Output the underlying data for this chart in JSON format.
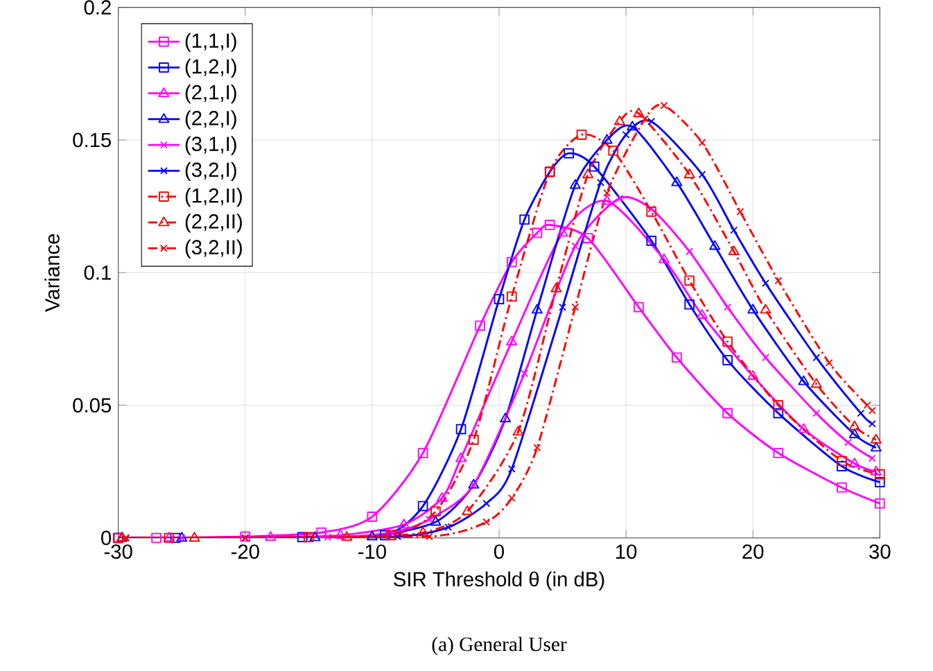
{
  "chart_data": {
    "type": "line",
    "xlabel": "SIR Threshold θ (in dB)",
    "ylabel": "Variance",
    "annotations": [
      "(a) General User"
    ],
    "xlim": [
      -30,
      30
    ],
    "xticks": [
      -30,
      -20,
      -10,
      0,
      10,
      20,
      30
    ],
    "ylim": [
      0,
      0.2
    ],
    "yticks": [
      0,
      0.05,
      0.1,
      0.15,
      0.2
    ],
    "grid": true,
    "legend": "top left",
    "series": [
      {
        "name": "(1,1,I)",
        "color": "#ff00ff",
        "marker": "square",
        "line_style": "solid",
        "x": [
          -30,
          -27,
          -20,
          -14,
          -10,
          -6,
          -1.5,
          1,
          3,
          4,
          7,
          11,
          14,
          18,
          22,
          27,
          30
        ],
        "values": [
          0,
          0,
          0.0005,
          0.002,
          0.008,
          0.032,
          0.08,
          0.104,
          0.115,
          0.118,
          0.113,
          0.087,
          0.068,
          0.047,
          0.032,
          0.019,
          0.013
        ]
      },
      {
        "name": "(1,2,I)",
        "color": "#0000ff",
        "marker": "square",
        "line_style": "solid",
        "x": [
          -30,
          -25.5,
          -15.5,
          -9,
          -6,
          -3,
          0,
          2,
          4,
          5.5,
          7.5,
          12,
          15,
          18,
          22,
          27,
          30
        ],
        "values": [
          0,
          0,
          0.0003,
          0.001,
          0.012,
          0.041,
          0.09,
          0.12,
          0.138,
          0.145,
          0.14,
          0.112,
          0.088,
          0.067,
          0.047,
          0.027,
          0.021
        ]
      },
      {
        "name": "(2,1,I)",
        "color": "#ff00ff",
        "marker": "triangle",
        "line_style": "solid",
        "x": [
          -29.7,
          -26,
          -18,
          -12.5,
          -7.5,
          -4.5,
          -3,
          1,
          5,
          8.5,
          13,
          16,
          20,
          24,
          28,
          29.7
        ],
        "values": [
          0,
          0,
          0.0003,
          0.001,
          0.005,
          0.015,
          0.03,
          0.074,
          0.115,
          0.127,
          0.105,
          0.084,
          0.061,
          0.041,
          0.028,
          0.025
        ]
      },
      {
        "name": "(2,2,I)",
        "color": "#0000ff",
        "marker": "triangle",
        "line_style": "solid",
        "x": [
          -29.7,
          -25,
          -14.5,
          -10,
          -5,
          -2,
          0.5,
          3,
          6,
          8.5,
          10.5,
          14,
          17,
          20,
          24,
          28,
          29.7
        ],
        "values": [
          0,
          0,
          0.0002,
          0.0005,
          0.006,
          0.02,
          0.045,
          0.086,
          0.133,
          0.15,
          0.155,
          0.134,
          0.11,
          0.086,
          0.059,
          0.039,
          0.034
        ]
      },
      {
        "name": "(3,1,I)",
        "color": "#ff00ff",
        "marker": "cross",
        "line_style": "solid",
        "x": [
          -29.4,
          -25,
          -13.5,
          -8.5,
          -5.5,
          -2,
          2,
          6,
          9.5,
          12,
          15,
          18,
          21,
          25,
          27.5,
          29.4
        ],
        "values": [
          0,
          0,
          0.0003,
          0.002,
          0.007,
          0.02,
          0.062,
          0.11,
          0.128,
          0.124,
          0.108,
          0.087,
          0.068,
          0.047,
          0.036,
          0.03
        ]
      },
      {
        "name": "(3,2,I)",
        "color": "#0000ff",
        "marker": "cross",
        "line_style": "solid",
        "x": [
          -29.4,
          -20,
          -8,
          -4,
          -1,
          1,
          5,
          8,
          10,
          12,
          16,
          18.5,
          21,
          25,
          28.5,
          29.4
        ],
        "values": [
          0,
          0,
          0.0005,
          0.004,
          0.013,
          0.026,
          0.087,
          0.134,
          0.152,
          0.157,
          0.137,
          0.116,
          0.096,
          0.068,
          0.047,
          0.043
        ]
      },
      {
        "name": "(1,2,II)",
        "color": "#ff0000",
        "marker": "square",
        "line_style": "dashdot",
        "x": [
          -30,
          -26,
          -15,
          -8.5,
          -5,
          -2,
          1,
          4,
          6.5,
          9,
          12,
          15,
          18,
          22,
          27,
          30
        ],
        "values": [
          0,
          0,
          0.0003,
          0.001,
          0.01,
          0.037,
          0.091,
          0.138,
          0.152,
          0.146,
          0.123,
          0.097,
          0.074,
          0.05,
          0.029,
          0.024
        ]
      },
      {
        "name": "(2,2,II)",
        "color": "#ff0000",
        "marker": "triangle",
        "line_style": "dashdot",
        "x": [
          -29.7,
          -24,
          -12,
          -6,
          -2.5,
          1.5,
          4.5,
          7,
          9.5,
          11,
          15,
          18.5,
          21,
          25,
          28,
          29.7
        ],
        "values": [
          0,
          0,
          0.0003,
          0.002,
          0.01,
          0.04,
          0.094,
          0.137,
          0.157,
          0.16,
          0.137,
          0.108,
          0.086,
          0.058,
          0.042,
          0.037
        ]
      },
      {
        "name": "(3,2,II)",
        "color": "#ff0000",
        "marker": "cross",
        "line_style": "dashdot",
        "x": [
          -29.4,
          -20,
          -5.5,
          -1,
          1,
          3,
          6,
          8.5,
          11.5,
          13,
          16,
          19,
          22,
          26,
          29,
          29.4
        ],
        "values": [
          0,
          0,
          0.0005,
          0.006,
          0.015,
          0.034,
          0.087,
          0.13,
          0.158,
          0.163,
          0.149,
          0.123,
          0.097,
          0.066,
          0.05,
          0.048
        ]
      }
    ]
  }
}
